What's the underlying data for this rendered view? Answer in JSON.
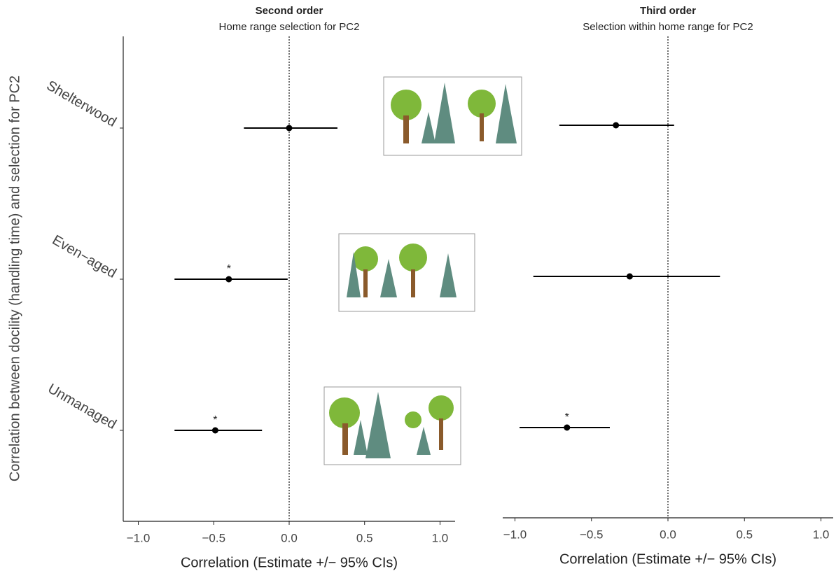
{
  "chart_data": [
    {
      "type": "forest",
      "title": "Second order",
      "subtitle": "Home range selection for PC2",
      "xlabel": "Correlation (Estimate +/− 95% CIs)",
      "ylabel": "Correlation between docility (handling time) and selection for PC2",
      "categories": [
        "Shelterwood",
        "Even−aged",
        "Unmanaged"
      ],
      "values": [
        0.0,
        -0.4,
        -0.49
      ],
      "lower": [
        -0.3,
        -0.76,
        -0.76
      ],
      "upper": [
        0.32,
        -0.01,
        -0.18
      ],
      "annotations": [
        null,
        "*",
        "*"
      ],
      "xlim": [
        -1.1,
        1.1
      ],
      "xticks": [
        {
          "value": -1,
          "label": "−1.0"
        },
        {
          "value": -0.5,
          "label": "−0.5"
        },
        {
          "value": 0,
          "label": "0.0"
        },
        0.5,
        {
          "value": 1,
          "label": "1.0"
        }
      ],
      "reference_line": 0,
      "color": "#000000"
    },
    {
      "type": "forest",
      "title": "Third order",
      "subtitle": "Selection within home range for PC2",
      "xlabel": "Correlation (Estimate +/− 95% CIs)",
      "values": [
        -0.34,
        -0.25,
        -0.66
      ],
      "lower": [
        -0.71,
        -0.88,
        -0.97
      ],
      "upper": [
        0.04,
        0.34,
        -0.38
      ],
      "annotations": [
        null,
        null,
        "*"
      ],
      "xlim": [
        -1.08,
        1.08
      ],
      "xticks": [
        {
          "value": -1,
          "label": "−1.0"
        },
        {
          "value": -0.5,
          "label": "−0.5"
        },
        {
          "value": 0,
          "label": "0.0"
        },
        0.5,
        {
          "value": 1,
          "label": "1.0"
        }
      ],
      "reference_line": 0,
      "color": "#000000"
    }
  ]
}
